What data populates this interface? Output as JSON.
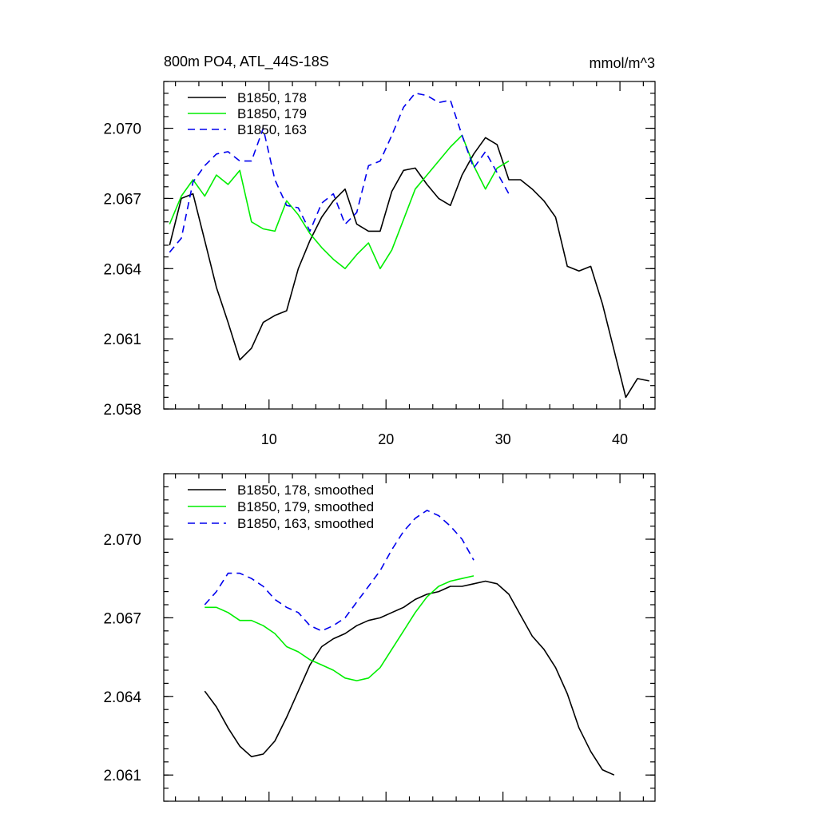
{
  "chart_data": [
    {
      "type": "line",
      "title": "800m PO4, ATL_44S-18S",
      "units": "mmol/m^3",
      "xlim": [
        1,
        43
      ],
      "ylim": [
        2.058,
        2.072
      ],
      "xticks": [
        10,
        20,
        30,
        40
      ],
      "yticks": [
        2.058,
        2.061,
        2.064,
        2.067,
        2.07
      ],
      "ytick_labels": [
        "2.058",
        "2.061",
        "2.064",
        "2.067",
        "2.070"
      ],
      "xtick_labels": [
        "10",
        "20",
        "30",
        "40"
      ],
      "legend_position": "top-left",
      "series": [
        {
          "name": "B1850, 178",
          "color": "#000000",
          "dash": "solid",
          "x": [
            1.5,
            2.5,
            3.5,
            4.5,
            5.5,
            6.5,
            7.5,
            8.5,
            9.5,
            10.5,
            11.5,
            12.5,
            13.5,
            14.5,
            15.5,
            16.5,
            17.5,
            18.5,
            19.5,
            20.5,
            21.5,
            22.5,
            23.5,
            24.5,
            25.5,
            26.5,
            27.5,
            28.5,
            29.5,
            30.5,
            31.5,
            32.5,
            33.5,
            34.5,
            35.5,
            36.5,
            37.5,
            38.5,
            39.5,
            40.5,
            41.5,
            42.5
          ],
          "values": [
            2.065,
            2.067,
            2.0672,
            2.0652,
            2.0632,
            2.0617,
            2.0601,
            2.0606,
            2.0617,
            2.062,
            2.0622,
            2.064,
            2.0652,
            2.0662,
            2.0669,
            2.0674,
            2.0659,
            2.0656,
            2.0656,
            2.0673,
            2.0682,
            2.0683,
            2.0676,
            2.067,
            2.0667,
            2.068,
            2.0689,
            2.0696,
            2.0693,
            2.0678,
            2.0678,
            2.0674,
            2.0669,
            2.0662,
            2.0641,
            2.0639,
            2.0641,
            2.0625,
            2.0605,
            2.0585,
            2.0593,
            2.0592
          ]
        },
        {
          "name": "B1850, 179",
          "color": "#00ee00",
          "dash": "solid",
          "x": [
            1.5,
            2.5,
            3.5,
            4.5,
            5.5,
            6.5,
            7.5,
            8.5,
            9.5,
            10.5,
            11.5,
            12.5,
            13.5,
            14.5,
            15.5,
            16.5,
            17.5,
            18.5,
            19.5,
            20.5,
            21.5,
            22.5,
            23.5,
            24.5,
            25.5,
            26.5,
            27.5,
            28.5,
            29.5,
            30.5
          ],
          "values": [
            2.0659,
            2.0671,
            2.0678,
            2.0671,
            2.068,
            2.0676,
            2.0682,
            2.066,
            2.0657,
            2.0656,
            2.0669,
            2.0663,
            2.0655,
            2.0649,
            2.0644,
            2.064,
            2.0646,
            2.0651,
            2.064,
            2.0648,
            2.0661,
            2.0674,
            2.068,
            2.0686,
            2.0692,
            2.0697,
            2.0684,
            2.0674,
            2.0683,
            2.0686
          ]
        },
        {
          "name": "B1850, 163",
          "color": "#0000ee",
          "dash": "dashed",
          "x": [
            1.5,
            2.5,
            3.5,
            4.5,
            5.5,
            6.5,
            7.5,
            8.5,
            9.5,
            10.5,
            11.5,
            12.5,
            13.5,
            14.5,
            15.5,
            16.5,
            17.5,
            18.5,
            19.5,
            20.5,
            21.5,
            22.5,
            23.5,
            24.5,
            25.5,
            26.5,
            27.5,
            28.5,
            29.5,
            30.5
          ],
          "values": [
            2.0647,
            2.0653,
            2.0677,
            2.0684,
            2.0689,
            2.069,
            2.0686,
            2.0686,
            2.07,
            2.0678,
            2.0667,
            2.0666,
            2.0656,
            2.0668,
            2.0672,
            2.0659,
            2.0664,
            2.0684,
            2.0686,
            2.0697,
            2.0709,
            2.0715,
            2.0714,
            2.0711,
            2.0712,
            2.0697,
            2.0683,
            2.069,
            2.0681,
            2.0672
          ]
        }
      ]
    },
    {
      "type": "line",
      "title": "",
      "xlim": [
        1,
        43
      ],
      "ylim": [
        2.06,
        2.0725
      ],
      "xticks": [
        10,
        20,
        30,
        40
      ],
      "yticks": [
        2.061,
        2.064,
        2.067,
        2.07
      ],
      "ytick_labels": [
        "2.061",
        "2.064",
        "2.067",
        "2.070"
      ],
      "legend_position": "top-left",
      "series": [
        {
          "name": "B1850, 178, smoothed",
          "color": "#000000",
          "dash": "solid",
          "x": [
            4.5,
            5.5,
            6.5,
            7.5,
            8.5,
            9.5,
            10.5,
            11.5,
            12.5,
            13.5,
            14.5,
            15.5,
            16.5,
            17.5,
            18.5,
            19.5,
            20.5,
            21.5,
            22.5,
            23.5,
            24.5,
            25.5,
            26.5,
            27.5,
            28.5,
            29.5,
            30.5,
            31.5,
            32.5,
            33.5,
            34.5,
            35.5,
            36.5,
            37.5,
            38.5,
            39.5
          ],
          "values": [
            2.0642,
            2.0636,
            2.0628,
            2.0621,
            2.0617,
            2.0618,
            2.0623,
            2.0632,
            2.0642,
            2.0652,
            2.0659,
            2.0662,
            2.0664,
            2.0667,
            2.0669,
            2.067,
            2.0672,
            2.0674,
            2.0677,
            2.0679,
            2.068,
            2.0682,
            2.0682,
            2.0683,
            2.0684,
            2.0683,
            2.0679,
            2.0671,
            2.0663,
            2.0658,
            2.0651,
            2.0641,
            2.0628,
            2.0619,
            2.0612,
            2.061
          ]
        },
        {
          "name": "B1850, 179, smoothed",
          "color": "#00ee00",
          "dash": "solid",
          "x": [
            4.5,
            5.5,
            6.5,
            7.5,
            8.5,
            9.5,
            10.5,
            11.5,
            12.5,
            13.5,
            14.5,
            15.5,
            16.5,
            17.5,
            18.5,
            19.5,
            20.5,
            21.5,
            22.5,
            23.5,
            24.5,
            25.5,
            26.5,
            27.5
          ],
          "values": [
            2.0674,
            2.0674,
            2.0672,
            2.0669,
            2.0669,
            2.0667,
            2.0664,
            2.0659,
            2.0657,
            2.0654,
            2.0652,
            2.065,
            2.0647,
            2.0646,
            2.0647,
            2.0651,
            2.0658,
            2.0665,
            2.0672,
            2.0678,
            2.0682,
            2.0684,
            2.0685,
            2.0686
          ]
        },
        {
          "name": "B1850, 163, smoothed",
          "color": "#0000ee",
          "dash": "dashed",
          "x": [
            4.5,
            5.5,
            6.5,
            7.5,
            8.5,
            9.5,
            10.5,
            11.5,
            12.5,
            13.5,
            14.5,
            15.5,
            16.5,
            17.5,
            18.5,
            19.5,
            20.5,
            21.5,
            22.5,
            23.5,
            24.5,
            25.5,
            26.5,
            27.5
          ],
          "values": [
            2.0675,
            2.068,
            2.0687,
            2.0687,
            2.0685,
            2.0682,
            2.0677,
            2.0674,
            2.0672,
            2.0667,
            2.0665,
            2.0667,
            2.067,
            2.0676,
            2.0682,
            2.0688,
            2.0696,
            2.0703,
            2.0708,
            2.0711,
            2.0709,
            2.0705,
            2.07,
            2.0692
          ]
        }
      ]
    }
  ]
}
